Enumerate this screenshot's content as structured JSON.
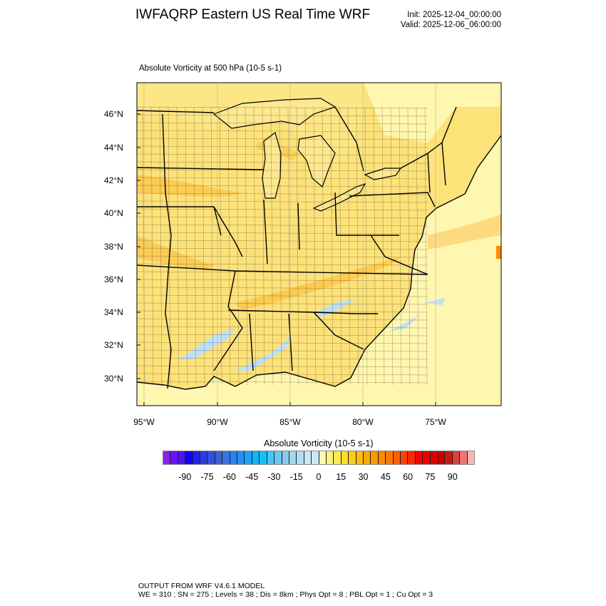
{
  "header": {
    "title": "IWFAQRP Eastern US Real Time WRF",
    "init": "Init: 2025-12-04_00:00:00",
    "valid": "Valid: 2025-12-06_06:00:00",
    "subtitle": "Absolute Vorticity at 500 hPa   (10-5 s-1)"
  },
  "map": {
    "projection": "Lambert conformal",
    "lat_ticks": [
      "46°N",
      "44°N",
      "42°N",
      "40°N",
      "38°N",
      "36°N",
      "34°N",
      "32°N",
      "30°N"
    ],
    "lon_ticks": [
      "95°W",
      "90°W",
      "85°W",
      "80°W",
      "75°W"
    ],
    "land_color": "#fde27a",
    "ocean_color": "#fff6b0",
    "max_band_color": "#fbbf3a",
    "negative_patch_color": "#bfe0f4"
  },
  "colorbar": {
    "title": "Absolute Vorticity  (10-5 s-1)",
    "range": [
      -105,
      105
    ],
    "step": 5,
    "labels": [
      "-90",
      "-75",
      "-60",
      "-45",
      "-30",
      "-15",
      "0",
      "15",
      "30",
      "45",
      "60",
      "75",
      "90"
    ],
    "colors": [
      "#8224ef",
      "#6a14f0",
      "#4a14f4",
      "#1400ff",
      "#1c22f4",
      "#2a3aea",
      "#3250e2",
      "#4060d8",
      "#3a72e8",
      "#2882f2",
      "#2090fc",
      "#18a2f8",
      "#10b2f8",
      "#10c2fc",
      "#44c8f6",
      "#66caf0",
      "#8ccae8",
      "#a4d6ec",
      "#b4def0",
      "#c8e8f4",
      "#c8e8f4",
      "#fffab0",
      "#fff080",
      "#ffe850",
      "#ffdc28",
      "#fdcc20",
      "#fdbc10",
      "#fcaa00",
      "#fc9a00",
      "#fc8a00",
      "#fc7800",
      "#fc6000",
      "#fc4400",
      "#fc2800",
      "#fc0000",
      "#ec0000",
      "#d80000",
      "#c40000",
      "#d01414",
      "#dc4040",
      "#ee7474",
      "#ffb4b4"
    ]
  },
  "footer": {
    "line1": "OUTPUT FROM WRF V4.6.1 MODEL",
    "line2": "WE = 310 ; SN = 275 ; Levels = 38 ; Dis = 8km ; Phys Opt = 8 ; PBL Opt = 1 ; Cu Opt = 3"
  }
}
